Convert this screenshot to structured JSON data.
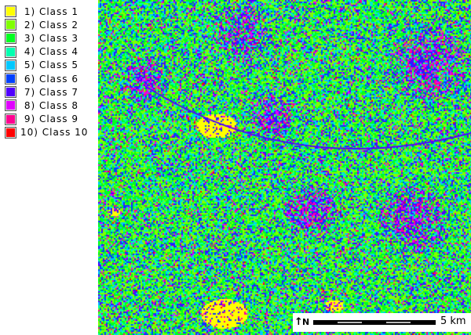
{
  "legend": {
    "items": [
      {
        "label": " 1) Class 1",
        "color": "#ffff00"
      },
      {
        "label": " 2) Class 2",
        "color": "#80ff00"
      },
      {
        "label": " 3) Class 3",
        "color": "#00ff20"
      },
      {
        "label": " 4) Class 4",
        "color": "#00ffb0"
      },
      {
        "label": " 5) Class 5",
        "color": "#00c8ff"
      },
      {
        "label": " 6) Class 6",
        "color": "#0040ff"
      },
      {
        "label": " 7) Class 7",
        "color": "#5000ff"
      },
      {
        "label": " 8) Class 8",
        "color": "#e000ff"
      },
      {
        "label": " 9) Class 9",
        "color": "#ff0090"
      },
      {
        "label": "10) Class 10",
        "color": "#ff0000"
      }
    ]
  },
  "scale_bar": {
    "label": "5 km",
    "north_label": "N"
  }
}
